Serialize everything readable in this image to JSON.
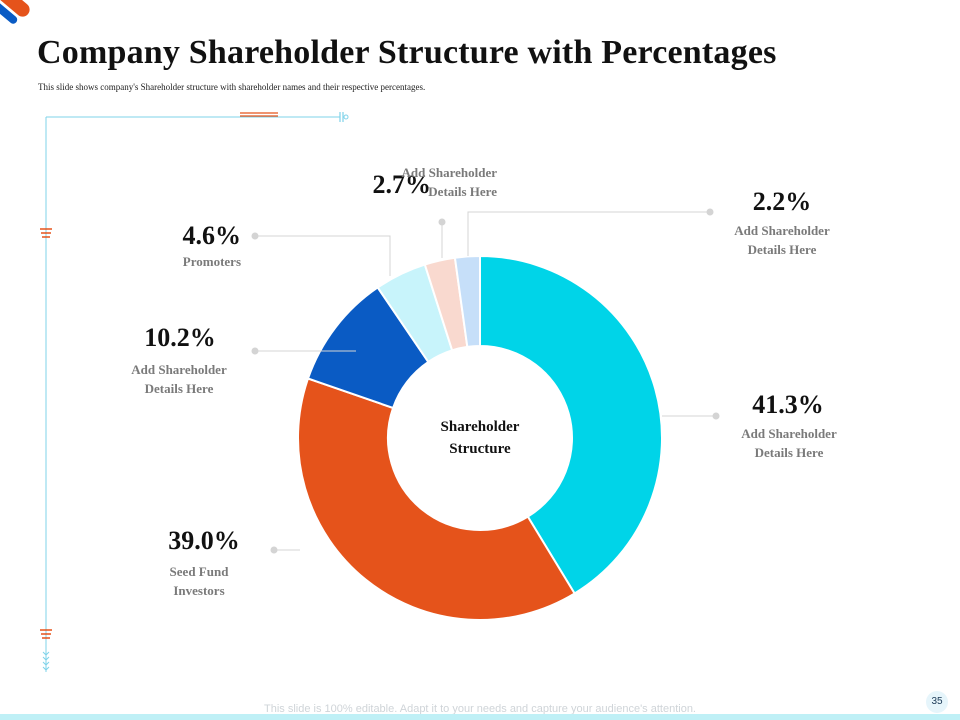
{
  "title": "Company Shareholder Structure with Percentages",
  "subtitle": "This slide shows company's Shareholder structure with shareholder names and their respective percentages.",
  "footer": "This slide is 100% editable. Adapt it to your needs and capture your audience's attention.",
  "page_number": "35",
  "chart_data": {
    "type": "pie",
    "variant": "donut",
    "center_label": [
      "Shareholder",
      "Structure"
    ],
    "slices": [
      {
        "value": 41.3,
        "label": "41.3%",
        "name": [
          "Add Shareholder",
          "Details Here"
        ],
        "color": "#00d4e8"
      },
      {
        "value": 39.0,
        "label": "39.0%",
        "name": [
          "Seed Fund",
          "Investors"
        ],
        "color": "#e5531b"
      },
      {
        "value": 10.2,
        "label": "10.2%",
        "name": [
          "Add Shareholder",
          "Details Here"
        ],
        "color": "#0a5bc4"
      },
      {
        "value": 4.6,
        "label": "4.6%",
        "name": [
          "Promoters"
        ],
        "color": "#c8f4fb"
      },
      {
        "value": 2.7,
        "label": "2.7%",
        "name": [
          "Add Shareholder",
          "Details Here"
        ],
        "color": "#f9d9cf"
      },
      {
        "value": 2.2,
        "label": "2.2%",
        "name": [
          "Add Shareholder",
          "Details Here"
        ],
        "color": "#c6dff9"
      }
    ]
  }
}
